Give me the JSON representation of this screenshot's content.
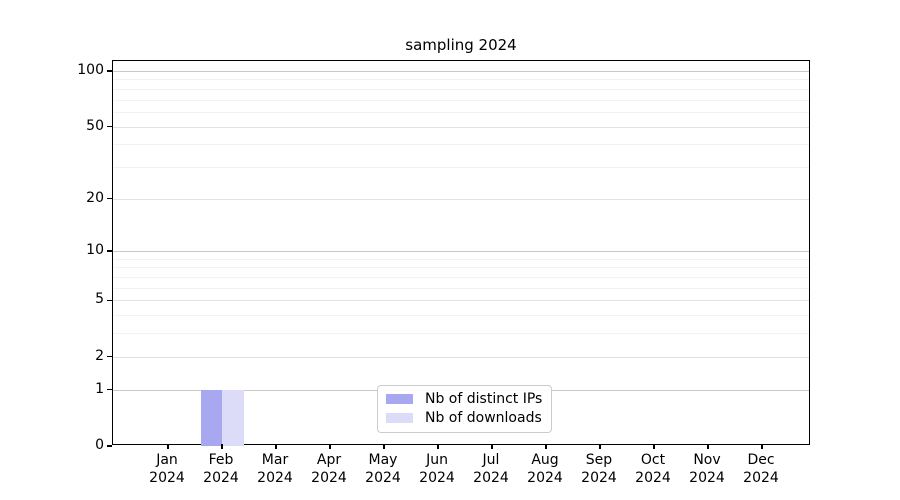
{
  "chart_data": {
    "type": "bar",
    "title": "sampling 2024",
    "x_categories": [
      "Jan",
      "Feb",
      "Mar",
      "Apr",
      "May",
      "Jun",
      "Jul",
      "Aug",
      "Sep",
      "Oct",
      "Nov",
      "Dec"
    ],
    "x_year": "2024",
    "series": [
      {
        "name": "Nb of distinct IPs",
        "color": "#a8a8f0",
        "values": [
          0,
          1,
          0,
          0,
          0,
          0,
          0,
          0,
          0,
          0,
          0,
          0
        ]
      },
      {
        "name": "Nb of downloads",
        "color": "#dcdcf8",
        "values": [
          0,
          1,
          0,
          0,
          0,
          0,
          0,
          0,
          0,
          0,
          0,
          0
        ]
      }
    ],
    "y_axis": {
      "scale": "log1p",
      "tick_values": [
        0,
        1,
        2,
        5,
        10,
        20,
        50,
        100
      ],
      "tick_labels": [
        "0",
        "1",
        "2",
        "5",
        "10",
        "20",
        "50",
        "100"
      ],
      "decade_ticks": [
        1,
        10,
        100
      ],
      "sub_ticks": [
        2,
        5,
        20,
        50
      ],
      "minor_ticks": [
        3,
        4,
        6,
        7,
        8,
        9,
        30,
        40,
        60,
        70,
        80,
        90
      ],
      "max": 100
    },
    "grid": {
      "decade_color": "#c9c9c9",
      "sub_color": "#e2e2e2",
      "minor_color": "#f2f2f2"
    },
    "legend_position": "lower center"
  }
}
